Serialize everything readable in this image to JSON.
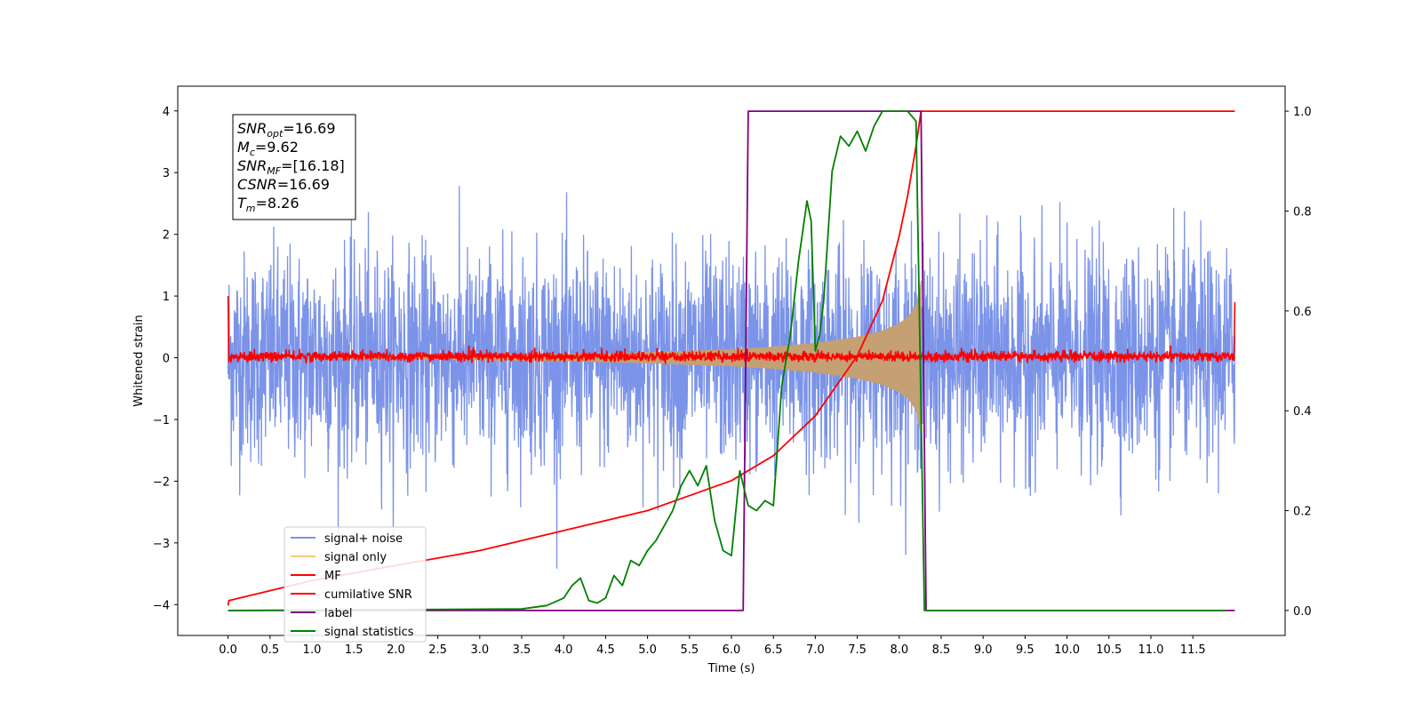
{
  "chart_data": {
    "type": "line",
    "title": "",
    "xlabel": "Time (s)",
    "ylabel": "Whitened strain",
    "xlim": [
      -0.6,
      12.6
    ],
    "ylim": [
      -4.5,
      4.4
    ],
    "y2lim": [
      -0.05,
      1.05
    ],
    "grid": false,
    "legend_position": "lower-left",
    "x_ticks": [
      0.0,
      0.5,
      1.0,
      1.5,
      2.0,
      2.5,
      3.0,
      3.5,
      4.0,
      4.5,
      5.0,
      5.5,
      6.0,
      6.5,
      7.0,
      7.5,
      8.0,
      8.5,
      9.0,
      9.5,
      10.0,
      10.5,
      11.0,
      11.5
    ],
    "x_tick_labels": [
      "0.0",
      "0.5",
      "1.0",
      "1.5",
      "2.0",
      "2.5",
      "3.0",
      "3.5",
      "4.0",
      "4.5",
      "5.0",
      "5.5",
      "6.0",
      "6.5",
      "7.0",
      "7.5",
      "8.0",
      "8.5",
      "9.0",
      "9.5",
      "10.0",
      "10.5",
      "11.0",
      "11.5"
    ],
    "y_ticks": [
      -4,
      -3,
      -2,
      -1,
      0,
      1,
      2,
      3,
      4
    ],
    "y_tick_labels": [
      "−4",
      "−3",
      "−2",
      "−1",
      "0",
      "1",
      "2",
      "3",
      "4"
    ],
    "y2_ticks": [
      0.0,
      0.2,
      0.4,
      0.6,
      0.8,
      1.0
    ],
    "y2_tick_labels": [
      "0.0",
      "0.2",
      "0.4",
      "0.6",
      "0.8",
      "1.0"
    ],
    "series": [
      {
        "name": "signal+ noise",
        "axis": "left",
        "color": "#7b93e8",
        "style": "dense noise band",
        "x_range": [
          0.0,
          12.0
        ],
        "typical_band": [
          -1.5,
          1.5
        ],
        "peak_band": [
          -3.5,
          4.0
        ]
      },
      {
        "name": "signal only",
        "axis": "left",
        "color": "#f5c87a",
        "style": "chirp envelope",
        "envelope_x": [
          0.0,
          2.0,
          4.0,
          5.0,
          6.0,
          6.5,
          7.0,
          7.5,
          7.8,
          8.0,
          8.1,
          8.2,
          8.26
        ],
        "envelope_amp": [
          0.0,
          0.02,
          0.06,
          0.09,
          0.14,
          0.18,
          0.24,
          0.34,
          0.44,
          0.56,
          0.66,
          0.85,
          1.25
        ]
      },
      {
        "name": "MF",
        "axis": "left",
        "color": "#ff0000",
        "style": "noise around zero",
        "x_range": [
          0.0,
          12.0
        ],
        "typical_band": [
          -0.08,
          0.12
        ],
        "edges": [
          [
            0.0,
            1.0
          ],
          [
            0.01,
            -0.05
          ],
          [
            11.99,
            -0.05
          ],
          [
            12.0,
            0.9
          ]
        ]
      },
      {
        "name": "cumilative SNR",
        "axis": "right",
        "color": "#ff0000",
        "x": [
          0.0,
          0.01,
          1.0,
          2.0,
          3.0,
          4.0,
          5.0,
          6.0,
          6.5,
          7.0,
          7.5,
          7.8,
          8.0,
          8.1,
          8.2,
          8.26,
          8.3,
          9.0,
          10.0,
          11.0,
          12.0
        ],
        "y": [
          0.01,
          0.02,
          0.06,
          0.09,
          0.12,
          0.16,
          0.2,
          0.26,
          0.31,
          0.39,
          0.51,
          0.62,
          0.75,
          0.83,
          0.93,
          1.0,
          1.0,
          1.0,
          1.0,
          1.0,
          1.0
        ]
      },
      {
        "name": "label",
        "axis": "right",
        "color": "#800080",
        "x": [
          0.0,
          6.14,
          6.2,
          8.26,
          8.32,
          12.0
        ],
        "y": [
          0.0,
          0.0,
          1.0,
          1.0,
          0.0,
          0.0
        ]
      },
      {
        "name": "signal statistics",
        "axis": "right",
        "color": "#008000",
        "x": [
          0.0,
          3.5,
          3.8,
          4.0,
          4.1,
          4.2,
          4.3,
          4.4,
          4.5,
          4.6,
          4.7,
          4.8,
          4.9,
          5.0,
          5.1,
          5.2,
          5.3,
          5.4,
          5.5,
          5.6,
          5.7,
          5.8,
          5.9,
          6.0,
          6.1,
          6.2,
          6.3,
          6.4,
          6.5,
          6.6,
          6.7,
          6.8,
          6.9,
          6.95,
          7.0,
          7.05,
          7.1,
          7.2,
          7.3,
          7.4,
          7.5,
          7.6,
          7.7,
          7.8,
          7.9,
          8.0,
          8.1,
          8.2,
          8.25,
          8.3,
          8.35,
          9.0,
          10.0,
          11.0,
          11.9
        ],
        "y": [
          0.0,
          0.003,
          0.01,
          0.025,
          0.05,
          0.065,
          0.02,
          0.015,
          0.025,
          0.07,
          0.05,
          0.1,
          0.09,
          0.12,
          0.14,
          0.17,
          0.2,
          0.25,
          0.28,
          0.25,
          0.29,
          0.18,
          0.12,
          0.11,
          0.28,
          0.21,
          0.2,
          0.22,
          0.21,
          0.45,
          0.55,
          0.7,
          0.82,
          0.78,
          0.52,
          0.55,
          0.62,
          0.88,
          0.95,
          0.93,
          0.96,
          0.92,
          0.97,
          1.0,
          1.0,
          1.0,
          1.0,
          0.98,
          0.5,
          0.0,
          0.0,
          0.0,
          0.0,
          0.0,
          0.0
        ]
      }
    ],
    "annotation": {
      "lines": [
        {
          "base": "SNR",
          "sub": "opt",
          "value": "=16.69"
        },
        {
          "base": "M",
          "sub": "c",
          "value": "=9.62"
        },
        {
          "base": "SNR",
          "sub": "MF",
          "value": "=[16.18]"
        },
        {
          "base": "CSNR",
          "sub": "",
          "value": "=16.69"
        },
        {
          "base": "T",
          "sub": "m",
          "value": "=8.26"
        }
      ]
    }
  }
}
